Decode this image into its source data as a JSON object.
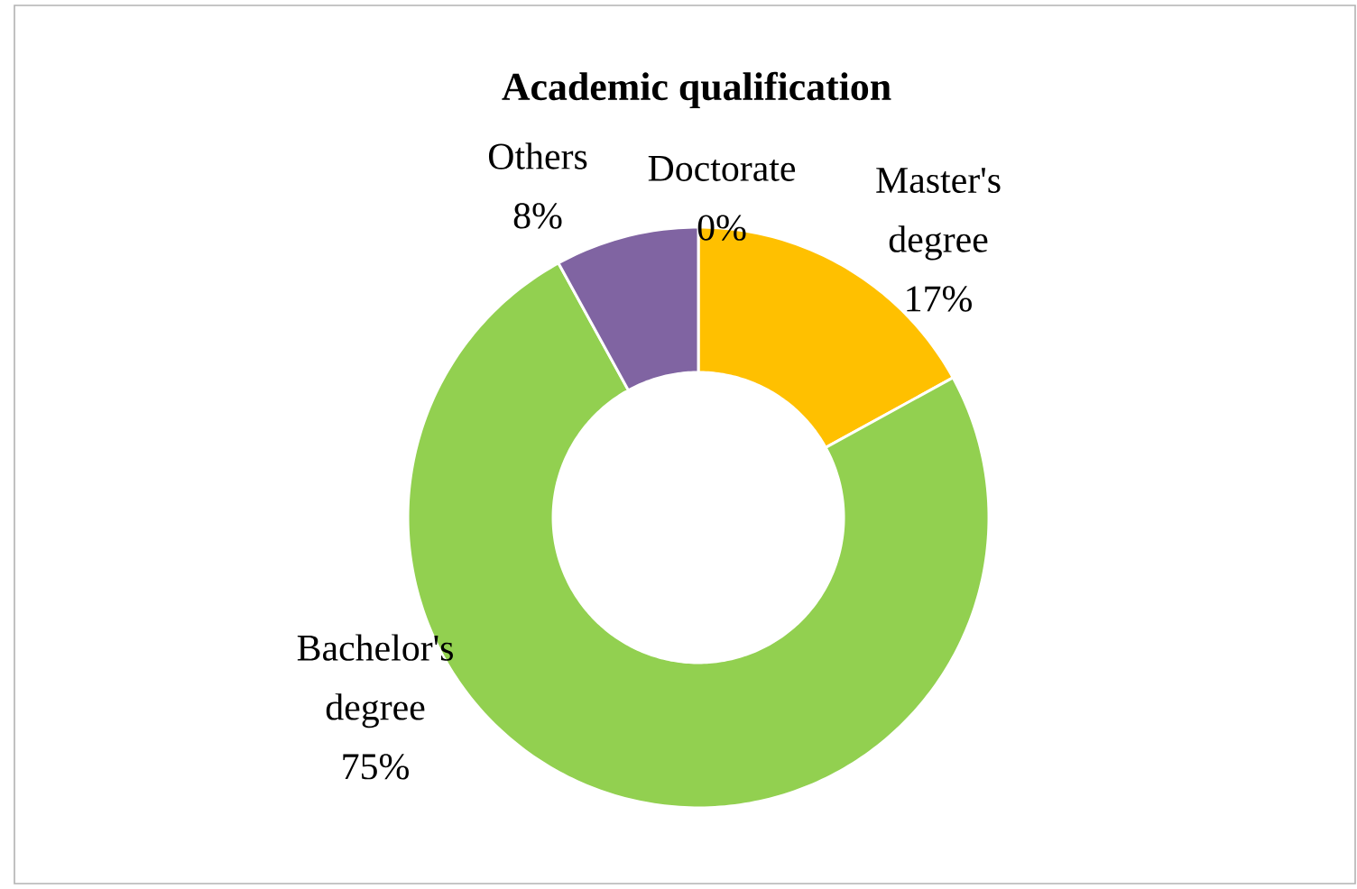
{
  "chart_data": {
    "type": "donut",
    "title": "Academic qualification",
    "categories": [
      "Doctorate",
      "Master's degree",
      "Bachelor's degree",
      "Others"
    ],
    "values": [
      0,
      17,
      75,
      8
    ],
    "colors": [
      "#4bacc6",
      "#ffc000",
      "#92d050",
      "#8064a2"
    ],
    "value_labels": [
      "0%",
      "17%",
      "75%",
      "8%"
    ]
  }
}
